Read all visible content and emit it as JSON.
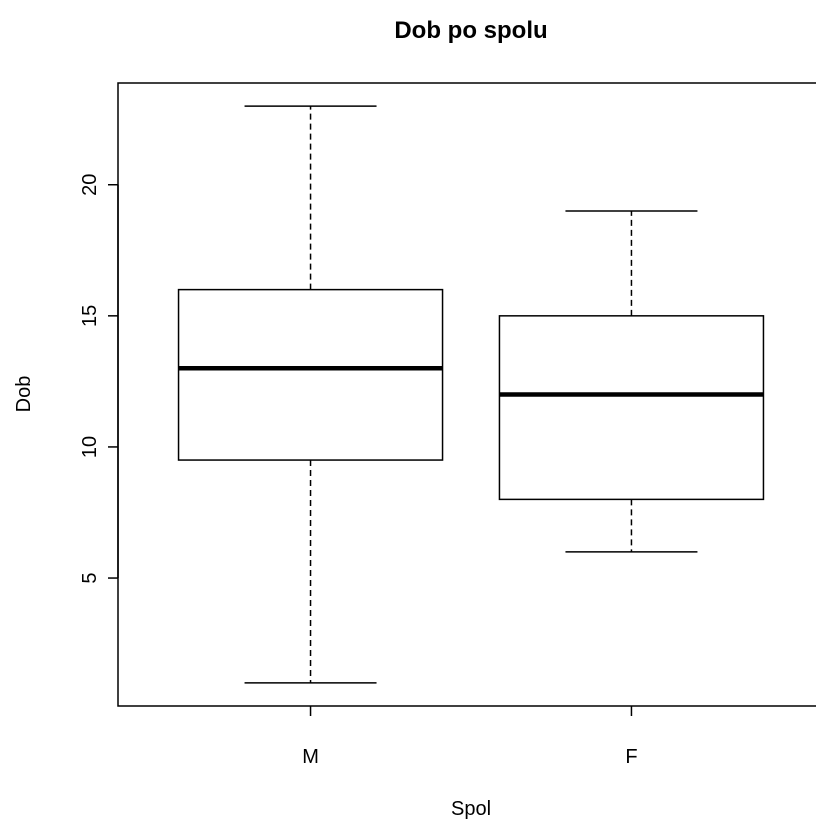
{
  "chart_data": {
    "type": "boxplot",
    "title": "Dob po spolu",
    "xlabel": "Spol",
    "ylabel": "Dob",
    "categories": [
      "M",
      "F"
    ],
    "boxes": [
      {
        "category": "M",
        "min": 1,
        "q1": 9.5,
        "median": 13,
        "q3": 16,
        "max": 23
      },
      {
        "category": "F",
        "min": 6,
        "q1": 8,
        "median": 12,
        "q3": 15,
        "max": 19
      }
    ],
    "y_ticks": [
      5,
      10,
      15,
      20
    ],
    "ylim": [
      0.12,
      23.88
    ],
    "grid": false,
    "colors": {
      "box_fill": "#ffffff",
      "line": "#000000",
      "background": "#ffffff"
    }
  }
}
